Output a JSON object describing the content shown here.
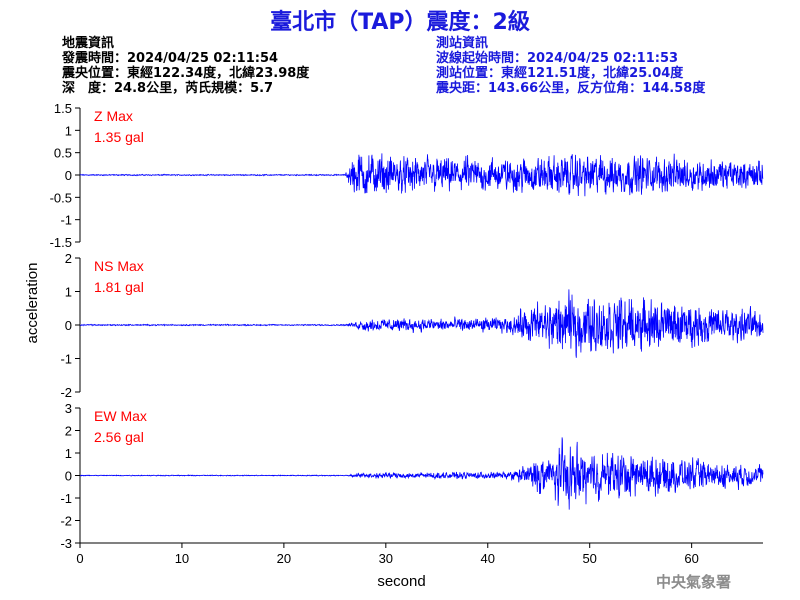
{
  "title": "臺北市（TAP）震度：2級",
  "quake_info": {
    "heading": "地震資訊",
    "origin_time": "發震時間：2024/04/25 02:11:54",
    "epicenter": "震央位置：東經122.34度，北緯23.98度",
    "depth_magnitude": "深　度：24.8公里，芮氏規模：5.7"
  },
  "station_info": {
    "heading": "測站資訊",
    "wave_start": "波線起始時間：2024/04/25 02:11:53",
    "station_location": "測站位置：東經121.51度，北緯25.04度",
    "epicentral_distance": "震央距：143.66公里，反方位角：144.58度"
  },
  "footer_mark": "中央氣象署",
  "colors": {
    "title": "#1a1adc",
    "trace": "#0000ff",
    "max_label": "#ff0000",
    "axis": "#000000",
    "footer": "#8c8c8c"
  },
  "chart_data": {
    "type": "line",
    "xlabel": "second",
    "ylabel": "acceleration",
    "xlim": [
      0,
      67
    ],
    "xticks": [
      0,
      10,
      20,
      30,
      40,
      50,
      60
    ],
    "grid": false,
    "panels": [
      {
        "name": "Z",
        "max_label": "Z Max",
        "max_value": "1.35 gal",
        "ylim": [
          -1.5,
          1.5
        ],
        "yticks": [
          1.5,
          1,
          0.5,
          0,
          -0.5,
          -1,
          -1.5
        ],
        "peak": 1.35,
        "onset_s": 26.0,
        "envelope": [
          [
            0,
            0.02
          ],
          [
            26,
            0.02
          ],
          [
            27,
            0.9
          ],
          [
            30,
            0.7
          ],
          [
            40,
            0.6
          ],
          [
            50,
            0.75
          ],
          [
            60,
            0.6
          ],
          [
            67,
            0.5
          ]
        ]
      },
      {
        "name": "NS",
        "max_label": "NS Max",
        "max_value": "1.81 gal",
        "ylim": [
          -2,
          2
        ],
        "yticks": [
          2,
          1,
          0,
          -1,
          -2
        ],
        "peak": 1.81,
        "onset_s": 26.0,
        "envelope": [
          [
            0,
            0.03
          ],
          [
            26,
            0.03
          ],
          [
            28,
            0.3
          ],
          [
            42,
            0.35
          ],
          [
            44,
            0.9
          ],
          [
            48,
            1.4
          ],
          [
            55,
            1.3
          ],
          [
            60,
            1.0
          ],
          [
            67,
            0.7
          ]
        ]
      },
      {
        "name": "EW",
        "max_label": "EW Max",
        "max_value": "2.56 gal",
        "ylim": [
          -3,
          3
        ],
        "yticks": [
          3,
          2,
          1,
          0,
          -1,
          -2,
          -3
        ],
        "peak": 2.56,
        "onset_s": 26.0,
        "envelope": [
          [
            0,
            0.03
          ],
          [
            26,
            0.03
          ],
          [
            28,
            0.2
          ],
          [
            42,
            0.25
          ],
          [
            44,
            0.8
          ],
          [
            47,
            2.2
          ],
          [
            50,
            1.8
          ],
          [
            55,
            1.5
          ],
          [
            60,
            1.1
          ],
          [
            67,
            0.7
          ]
        ]
      }
    ]
  }
}
